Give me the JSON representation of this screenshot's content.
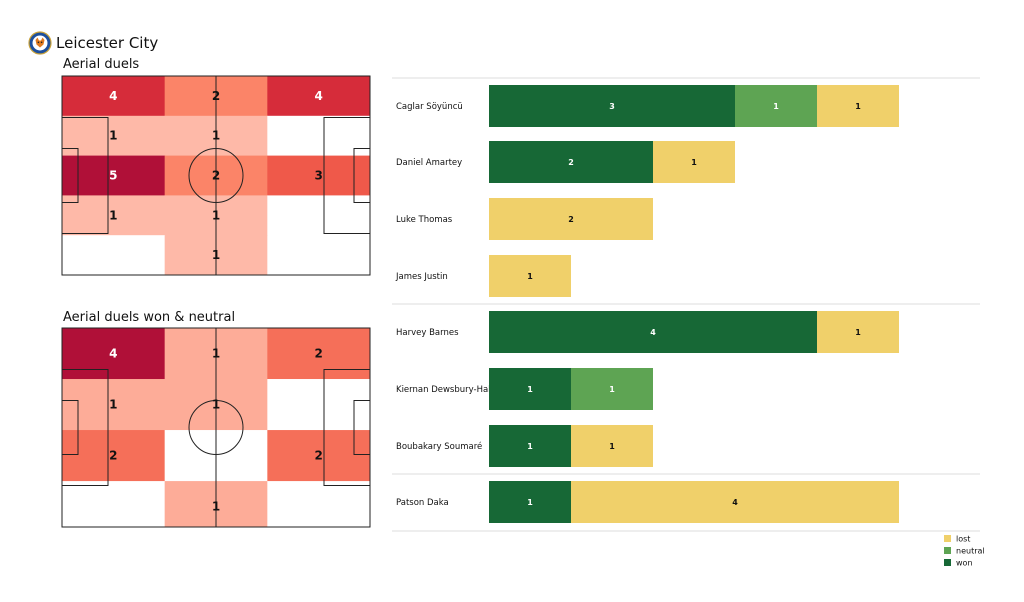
{
  "team": {
    "name": "Leicester City",
    "crest_icon": "leicester-fox-crest-icon"
  },
  "colors": {
    "won": "#176836",
    "neutral": "#5ea453",
    "lost": "#f0d06a"
  },
  "chart_data": [
    {
      "type": "heatmap",
      "title": "Aerial duels",
      "cols": 3,
      "rows": 5,
      "cells": [
        [
          4,
          2,
          4
        ],
        [
          1,
          1,
          0
        ],
        [
          5,
          2,
          3
        ],
        [
          1,
          1,
          0
        ],
        [
          0,
          1,
          0
        ]
      ],
      "color_max": 5,
      "colorscale": "reds"
    },
    {
      "type": "heatmap",
      "title": "Aerial duels won & neutral",
      "cols": 3,
      "rows": 4,
      "cells": [
        [
          4,
          1,
          2
        ],
        [
          1,
          1,
          0
        ],
        [
          2,
          0,
          2
        ],
        [
          0,
          1,
          0
        ]
      ],
      "color_max": 4,
      "colorscale": "reds"
    },
    {
      "type": "bar",
      "orientation": "horizontal",
      "stacked": true,
      "categories": [
        "Caglar Söyüncü",
        "Daniel Amartey",
        "Luke Thomas",
        "James Justin",
        "Harvey Barnes",
        "Kiernan Dewsbury-Hall",
        "Boubakary Soumaré",
        "Patson Daka"
      ],
      "groups": [
        [
          0,
          1,
          2,
          3
        ],
        [
          4,
          5,
          6
        ],
        [
          7
        ]
      ],
      "series": [
        {
          "name": "won",
          "values": [
            3,
            2,
            0,
            0,
            4,
            1,
            1,
            1
          ]
        },
        {
          "name": "neutral",
          "values": [
            1,
            0,
            0,
            0,
            0,
            1,
            0,
            0
          ]
        },
        {
          "name": "lost",
          "values": [
            1,
            1,
            2,
            1,
            1,
            0,
            1,
            4
          ]
        }
      ],
      "xlim": [
        0,
        5
      ],
      "legend": {
        "position": "bottom-right",
        "order": [
          "lost",
          "neutral",
          "won"
        ]
      }
    }
  ]
}
